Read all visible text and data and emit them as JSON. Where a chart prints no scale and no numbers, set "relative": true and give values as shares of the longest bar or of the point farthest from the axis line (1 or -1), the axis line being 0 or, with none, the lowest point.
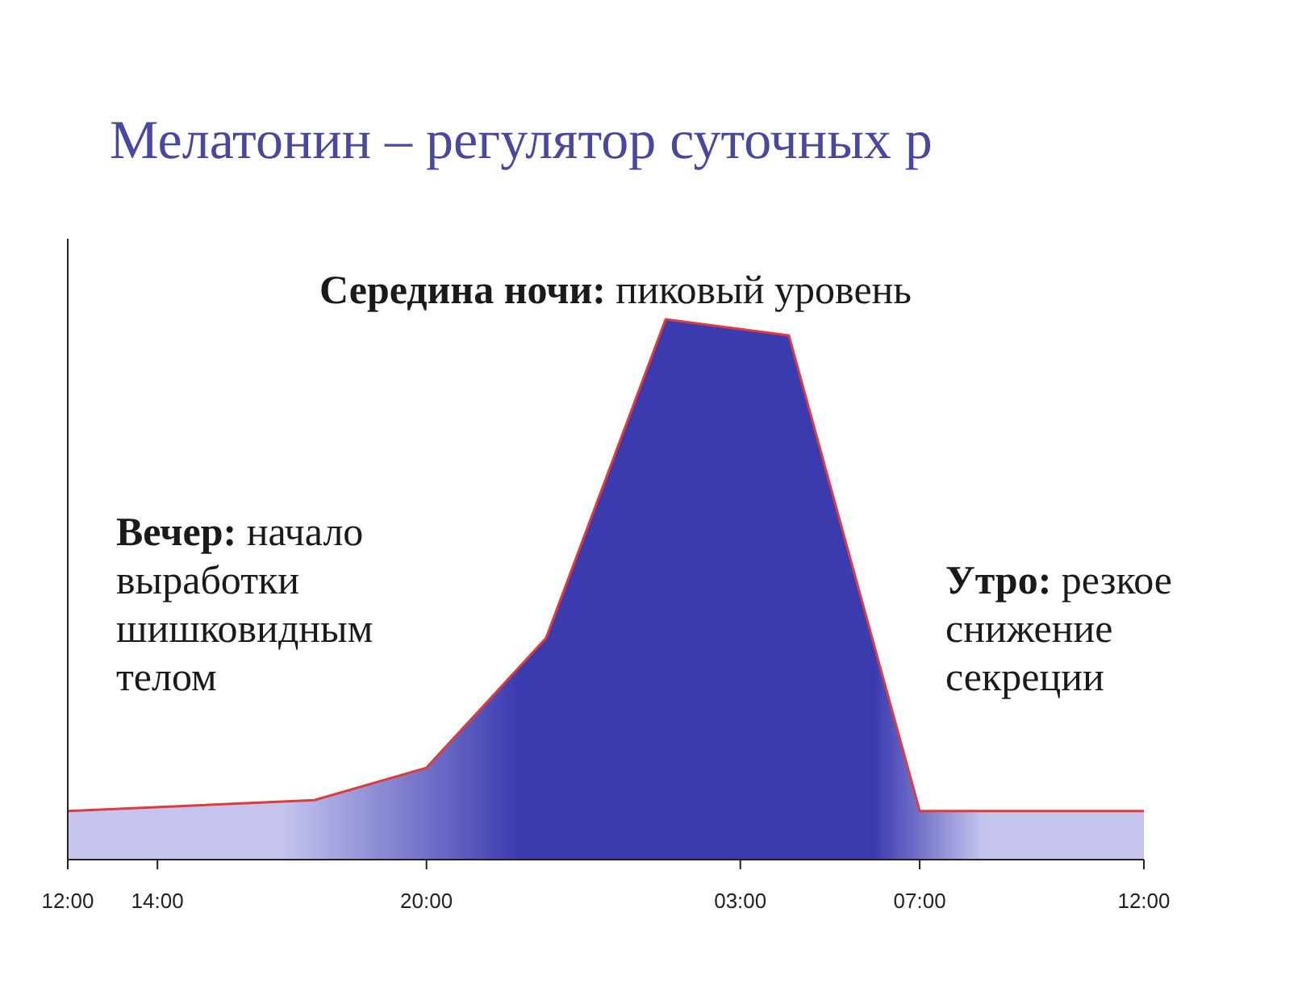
{
  "chart_data": {
    "type": "area",
    "title": "Мелатонин – регулятор суточных р",
    "relative": true,
    "x": [
      "2000-01-01T12:00",
      "2000-01-01T17:30",
      "2000-01-01T20:00",
      "2000-01-01T22:40",
      "2000-01-02T01:20",
      "2000-01-02T04:05",
      "2000-01-02T07:00",
      "2000-01-02T12:00"
    ],
    "series": [
      {
        "color": "#3b3bb0",
        "values": [
          0.09,
          0.11,
          0.17,
          0.41,
          1,
          0.97,
          0.09,
          0.09
        ]
      }
    ],
    "xlim": [
      "2000-01-01T12:00",
      "2000-01-02T12:00"
    ],
    "xticks": [
      {
        "value": "2000-01-01T12:00",
        "label": "12:00"
      },
      {
        "value": "2000-01-01T14:00",
        "label": "14:00"
      },
      {
        "value": "2000-01-01T20:00",
        "label": "20:00"
      },
      {
        "value": "2000-01-02T03:00",
        "label": "03:00"
      },
      {
        "value": "2000-01-02T07:00",
        "label": "07:00"
      },
      {
        "value": "2000-01-02T12:00",
        "label": "12:00"
      }
    ],
    "annotations": [
      "Середина ночи: пиковый уровень",
      "Вечер: начало\nвыработки\nшишковидным\nтелом",
      "Утро: резкое\nснижение\nсекреции"
    ],
    "tick_labels": "x",
    "grid": false
  }
}
